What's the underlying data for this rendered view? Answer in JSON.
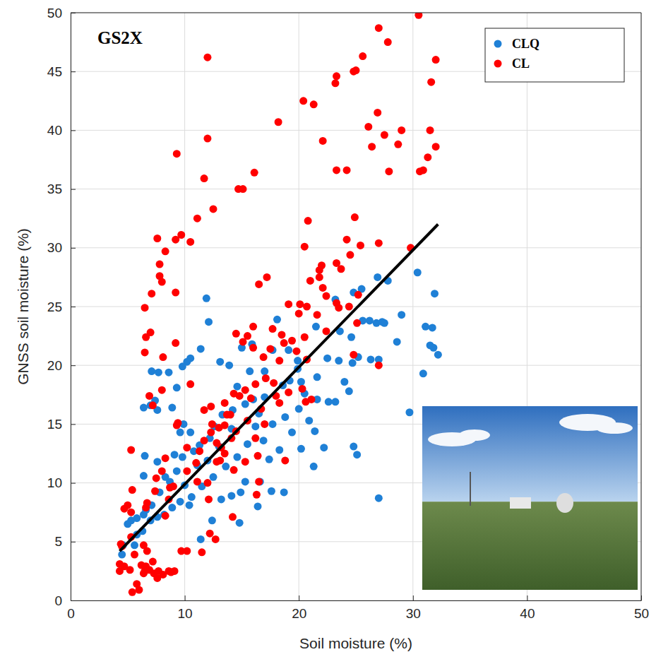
{
  "chart_data": {
    "type": "scatter",
    "annotations": [
      "GS2X"
    ],
    "x_label": "Soil moisture (%)",
    "y_label": "GNSS soil moisture (%)",
    "xlim": [
      0,
      50
    ],
    "ylim": [
      0,
      50
    ],
    "xticks": [
      0,
      10,
      20,
      30,
      40,
      50
    ],
    "yticks": [
      0,
      5,
      10,
      15,
      20,
      25,
      30,
      35,
      40,
      45,
      50
    ],
    "grid": true,
    "legend": "upper right",
    "series": [
      {
        "name": "CLQ",
        "color": "#1f80d6",
        "marker": "circle",
        "x": [
          11.9,
          12.1,
          18.1,
          21.5,
          23.2,
          24.8,
          25.5,
          26.9,
          27.8,
          30.4,
          31.9,
          31.7,
          31.1,
          31.5,
          31.8,
          32.2,
          30.9,
          29.0,
          27.5,
          25.6,
          26.2,
          26.8,
          27.3,
          28.6,
          25.2,
          27.0,
          26.3,
          24.7,
          24.0,
          24.4,
          23.2,
          22.5,
          21.6,
          20.2,
          19.9,
          19.1,
          17.7,
          15.9,
          15.0,
          13.9,
          13.1,
          11.4,
          10.5,
          10.2,
          9.8,
          9.3,
          8.6,
          7.7,
          7.1,
          7.6,
          7.4,
          7.0,
          6.4,
          8.9,
          9.9,
          9.6,
          10.5,
          10.8,
          11.3,
          12.2,
          12.6,
          13.3,
          14.2,
          15.3,
          16.0,
          17.0,
          18.6,
          19.2,
          20.5,
          21.6,
          20.9,
          18.8,
          17.7,
          16.2,
          15.5,
          14.6,
          13.6,
          12.5,
          11.5,
          10.6,
          9.6,
          8.9,
          8.2,
          7.6,
          7.0,
          6.4,
          5.8,
          5.3,
          5.0,
          4.6,
          4.5,
          5.8,
          6.3,
          6.6,
          7.1,
          7.8,
          8.3,
          8.7,
          9.3,
          9.8,
          9.1,
          6.5,
          6.4,
          7.6,
          5.6,
          11.4,
          12.4,
          10.4,
          10.0,
          13.2,
          14.1,
          14.8,
          14.9,
          15.3,
          16.4,
          16.6,
          17.6,
          18.7,
          20.2,
          21.3,
          22.2,
          21.4,
          22.6,
          23.5,
          24.6,
          23.6,
          24.8,
          25.1,
          27.0,
          29.7,
          20.0,
          19.4,
          18.3,
          17.4,
          16.9,
          14.1,
          13.0,
          12.0,
          11.1,
          19.9,
          17.0,
          15.7,
          14.6,
          16.5
        ],
        "values": [
          25.7,
          23.7,
          23.9,
          23.3,
          25.6,
          26.2,
          26.5,
          27.5,
          27.2,
          27.9,
          26.1,
          23.2,
          23.3,
          21.7,
          21.5,
          20.9,
          19.3,
          24.3,
          23.6,
          23.8,
          23.8,
          23.6,
          23.7,
          22.0,
          20.7,
          20.5,
          20.5,
          20.2,
          18.6,
          17.8,
          16.9,
          20.6,
          19.0,
          18.6,
          19.7,
          21.3,
          21.3,
          21.8,
          21.5,
          20.0,
          20.3,
          21.4,
          20.6,
          20.3,
          19.9,
          18.1,
          19.4,
          19.4,
          19.5,
          16.2,
          17.0,
          16.6,
          16.4,
          16.4,
          15.0,
          14.3,
          14.3,
          12.7,
          13.2,
          13.8,
          14.8,
          15.8,
          16.2,
          16.7,
          17.1,
          17.3,
          18.3,
          18.7,
          17.6,
          17.1,
          15.3,
          15.6,
          15.0,
          14.8,
          13.3,
          12.2,
          11.4,
          10.5,
          9.7,
          8.8,
          8.4,
          7.9,
          7.3,
          7.1,
          6.8,
          7.3,
          7.0,
          6.8,
          6.5,
          4.7,
          3.9,
          5.6,
          5.9,
          7.7,
          8.1,
          9.2,
          10.5,
          10.1,
          11.0,
          12.2,
          12.4,
          12.3,
          10.6,
          11.8,
          4.7,
          5.2,
          6.8,
          8.1,
          9.8,
          8.6,
          8.9,
          6.6,
          9.2,
          10.1,
          8.0,
          10.1,
          9.3,
          9.2,
          12.9,
          11.4,
          13.0,
          14.4,
          16.9,
          20.4,
          22.4,
          22.9,
          13.1,
          12.4,
          8.7,
          16.0,
          16.3,
          14.3,
          12.8,
          12.0,
          13.6,
          14.6,
          13.1,
          11.9,
          11.5,
          20.4,
          19.5,
          19.5,
          18.2,
          15.9
        ]
      },
      {
        "name": "CL",
        "color": "#ff0000",
        "marker": "circle",
        "x": [
          12.0,
          30.5,
          27.0,
          27.8,
          32.0,
          31.6,
          23.3,
          23.2,
          24.8,
          25.0,
          25.6,
          20.4,
          21.3,
          18.2,
          22.1,
          12.0,
          9.3,
          11.7,
          14.7,
          15.1,
          16.1,
          12.5,
          11.1,
          10.5,
          9.7,
          9.2,
          7.6,
          8.3,
          7.8,
          7.8,
          8.0,
          7.1,
          9.2,
          6.5,
          6.6,
          7.0,
          6.5,
          8.1,
          9.2,
          10.5,
          6.9,
          8.0,
          9.4,
          7.2,
          5.3,
          23.3,
          24.2,
          26.1,
          26.9,
          27.5,
          27.9,
          26.4,
          29.0,
          28.7,
          31.3,
          30.9,
          30.6,
          31.5,
          32.0,
          20.5,
          20.8,
          24.9,
          24.2,
          25.4,
          27.0,
          29.8,
          22.0,
          23.3,
          23.7,
          24.5,
          21.8,
          21.8,
          21.0,
          16.5,
          17.2,
          20.1,
          20.7,
          20.0,
          19.1,
          21.6,
          22.1,
          22.4,
          23.3,
          22.4,
          23.5,
          24.4,
          25.2,
          24.8,
          27.0,
          25.1,
          18.5,
          18.7,
          19.4,
          19.8,
          20.5,
          17.7,
          16.0,
          15.5,
          14.5,
          15.1,
          16.0,
          16.9,
          17.5,
          18.3,
          20.7,
          20.6,
          21.1,
          17.1,
          16.2,
          15.3,
          14.8,
          15.8,
          14.3,
          13.5,
          13.7,
          12.3,
          12.4,
          13.0,
          13.5,
          14.1,
          12.8,
          11.7,
          11.3,
          12.8,
          13.1,
          14.3,
          15.3,
          16.5,
          12.1,
          11.1,
          12.2,
          12.7,
          14.2,
          16.3,
          18.8,
          16.4,
          17.0,
          16.2,
          18.3,
          18.0,
          19.1,
          20.3,
          10.2,
          9.7,
          11.5,
          8.6,
          8.7,
          8.0,
          7.4,
          8.3,
          6.6,
          5.3,
          5.0,
          4.7,
          5.4,
          4.4,
          4.5,
          4.3,
          4.3,
          4.7,
          5.2,
          5.6,
          5.3,
          6.4,
          6.7,
          6.0,
          5.4,
          5.8,
          6.4,
          6.6,
          6.9,
          7.2,
          7.7,
          8.1,
          8.6,
          8.8,
          9.1,
          7.3,
          7.6,
          6.5,
          6.2,
          9.3,
          10.2,
          11.0,
          12.0,
          14.5,
          15.5,
          16.7,
          17.8,
          14.0,
          13.2,
          11.7,
          10.2,
          9.0,
          8.3,
          7.5,
          6.7,
          12.3,
          13.5
        ],
        "values": [
          46.2,
          49.8,
          48.7,
          47.5,
          46.0,
          44.1,
          44.6,
          44.0,
          45.0,
          45.1,
          46.3,
          42.5,
          42.2,
          40.7,
          39.1,
          39.3,
          38.0,
          35.9,
          35.0,
          35.0,
          36.4,
          33.3,
          32.5,
          30.5,
          31.1,
          30.7,
          30.8,
          29.7,
          28.6,
          27.6,
          27.1,
          26.1,
          26.2,
          24.9,
          22.4,
          22.8,
          21.1,
          20.7,
          21.9,
          18.4,
          17.4,
          17.9,
          15.1,
          16.6,
          12.8,
          36.6,
          36.6,
          40.3,
          41.5,
          39.6,
          36.5,
          38.6,
          40.0,
          38.8,
          37.7,
          36.6,
          36.5,
          40.0,
          38.6,
          30.1,
          32.3,
          32.6,
          30.7,
          30.2,
          30.4,
          30.0,
          28.5,
          28.7,
          28.2,
          29.4,
          28.1,
          27.5,
          27.2,
          26.9,
          27.5,
          25.2,
          25.0,
          24.4,
          25.2,
          24.3,
          26.6,
          25.9,
          25.3,
          22.9,
          24.9,
          25.0,
          26.0,
          20.9,
          20.0,
          23.6,
          22.6,
          21.9,
          22.1,
          21.2,
          22.4,
          23.1,
          23.3,
          22.5,
          22.7,
          22.0,
          21.5,
          20.7,
          21.4,
          20.4,
          20.5,
          16.9,
          17.1,
          18.9,
          18.4,
          17.9,
          17.4,
          17.2,
          17.6,
          16.8,
          15.8,
          16.5,
          15.0,
          14.7,
          14.9,
          13.8,
          13.4,
          13.6,
          12.7,
          11.8,
          11.9,
          11.1,
          11.8,
          10.1,
          8.6,
          10.1,
          5.7,
          5.2,
          7.1,
          9.0,
          11.9,
          12.3,
          15.0,
          13.8,
          16.8,
          17.4,
          17.7,
          18.0,
          4.2,
          4.2,
          4.1,
          8.6,
          9.6,
          11.0,
          9.3,
          7.2,
          7.9,
          7.5,
          8.1,
          7.8,
          9.4,
          4.8,
          4.6,
          3.1,
          2.5,
          2.9,
          2.6,
          3.9,
          5.4,
          4.7,
          4.2,
          0.9,
          0.7,
          1.4,
          2.3,
          2.9,
          2.6,
          3.3,
          2.5,
          2.2,
          2.5,
          2.4,
          2.5,
          2.3,
          1.9,
          2.5,
          3.0,
          14.9,
          13.0,
          11.7,
          10.0,
          14.4,
          15.3,
          16.3,
          18.5,
          15.8,
          13.0,
          16.2,
          11.0,
          9.7,
          12.1,
          10.4,
          8.3,
          14.3,
          12.5
        ]
      },
      {
        "type": "line",
        "color": "#000000",
        "line_style": "solid",
        "x": [
          4.3,
          32.2
        ],
        "values": [
          4.2,
          32.0
        ]
      }
    ]
  }
}
